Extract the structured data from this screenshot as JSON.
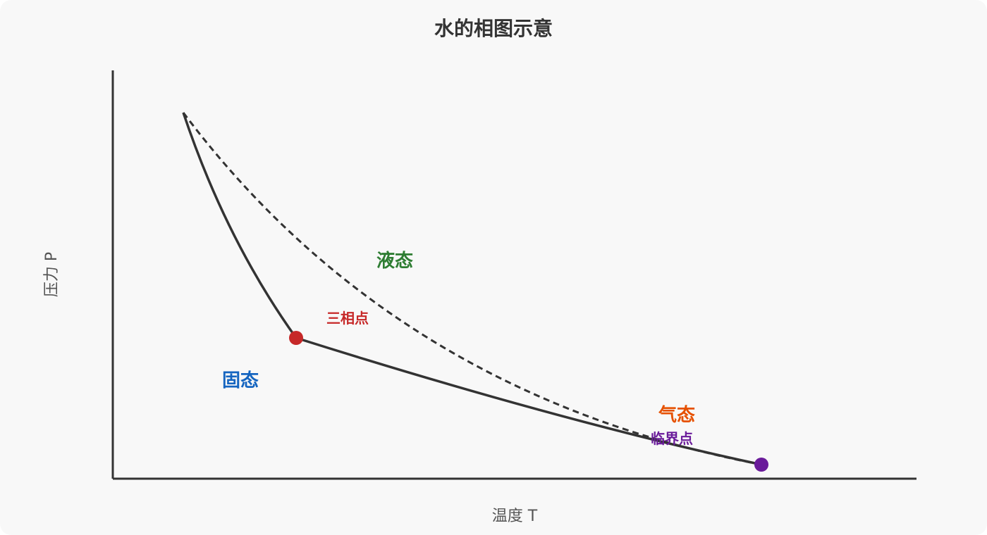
{
  "title": "水的相图示意",
  "axes": {
    "x_label": "温度 T",
    "y_label": "压力 P"
  },
  "regions": {
    "liquid": "液态",
    "solid": "固态",
    "gas": "气态"
  },
  "points": {
    "triple_point": "三相点",
    "critical_point": "临界点"
  },
  "colors": {
    "liquid": "#2e7d32",
    "solid": "#1565c0",
    "gas": "#e65100",
    "triple_point": "#c62828",
    "critical_point": "#6a1b9a",
    "curve": "#333333"
  }
}
